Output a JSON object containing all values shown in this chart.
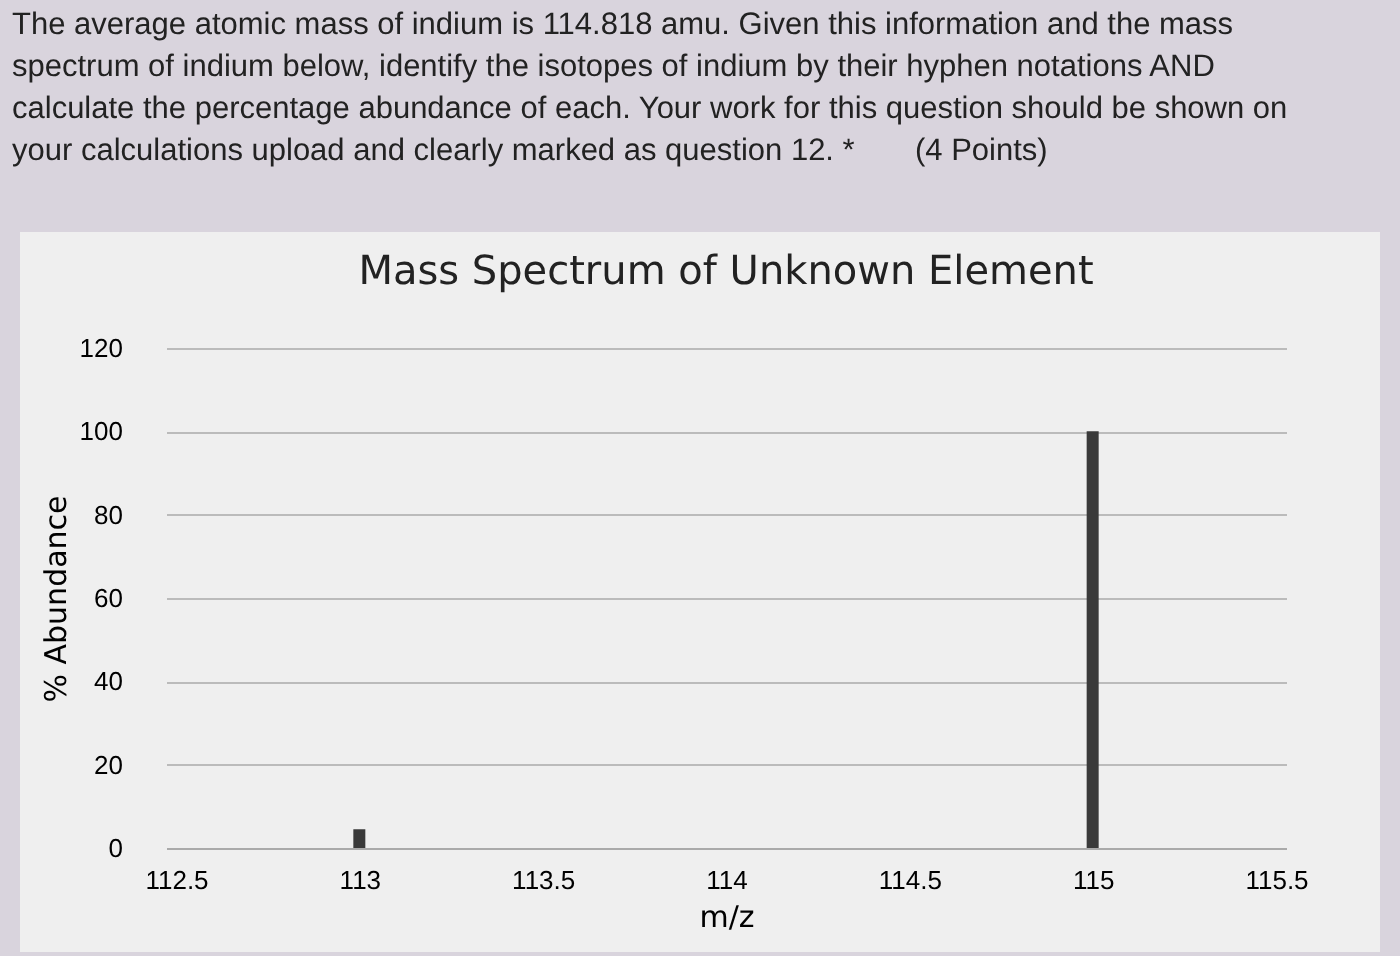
{
  "chart_data": {
    "type": "bar",
    "title": "Mass Spectrum of Unknown Element",
    "xlabel": "m/z",
    "ylabel": "% Abundance",
    "annotations": [
      "The average atomic mass of indium is 114.818 amu. Given this information and the mass spectrum of indium below, identify the isotopes of indium by their hyphen notations AND calculate the percentage abundance of each. Your work for this question should be shown on your calculations upload and clearly marked as question 12. *       (4 Points)"
    ],
    "x": [
      113,
      115
    ],
    "values": [
      4.5,
      100
    ],
    "color": "#3a3a3a",
    "xlim": [
      112.5,
      115.5
    ],
    "xticks": [
      112.5,
      113,
      113.5,
      114,
      114.5,
      115,
      115.5
    ],
    "ylim": [
      0,
      120
    ],
    "yticks": [
      0,
      20,
      40,
      60,
      80,
      100,
      120
    ],
    "grid": "y"
  }
}
